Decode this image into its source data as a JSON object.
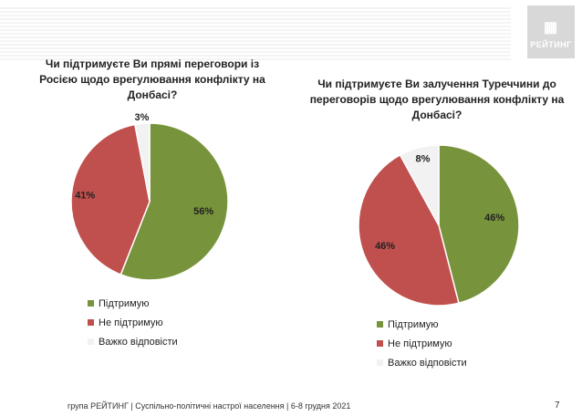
{
  "logo": {
    "word": "РЕЙТИНГ"
  },
  "colors": {
    "support": "#77933c",
    "nosupport": "#c0504d",
    "hard": "#f2f2f2"
  },
  "legend": {
    "items": [
      {
        "label": "Підтримую",
        "color": "#77933c"
      },
      {
        "label": "Не підтримую",
        "color": "#c0504d"
      },
      {
        "label": "Важко відповісти",
        "color": "#f2f2f2"
      }
    ]
  },
  "chart_data": [
    {
      "type": "pie",
      "title": "Чи підтримуєте Ви прямі переговори із Росією щодо врегулювання конфлікту на Донбасі?",
      "categories": [
        "Підтримую",
        "Не підтримую",
        "Важко відповісти"
      ],
      "values": [
        56,
        41,
        3
      ],
      "labels": [
        "56%",
        "41%",
        "3%"
      ],
      "legend": "bottom"
    },
    {
      "type": "pie",
      "title": "Чи підтримуєте Ви залучення Туреччини до переговорів щодо врегулювання конфлікту на Донбасі?",
      "categories": [
        "Підтримую",
        "Не підтримую",
        "Важко відповісти"
      ],
      "values": [
        46,
        46,
        8
      ],
      "labels": [
        "46%",
        "46%",
        "8%"
      ],
      "legend": "bottom"
    }
  ],
  "footer": {
    "text": "група РЕЙТИНГ | Суспільно-політичні настрої населення | 6-8 грудня 2021"
  },
  "page_number": "7"
}
